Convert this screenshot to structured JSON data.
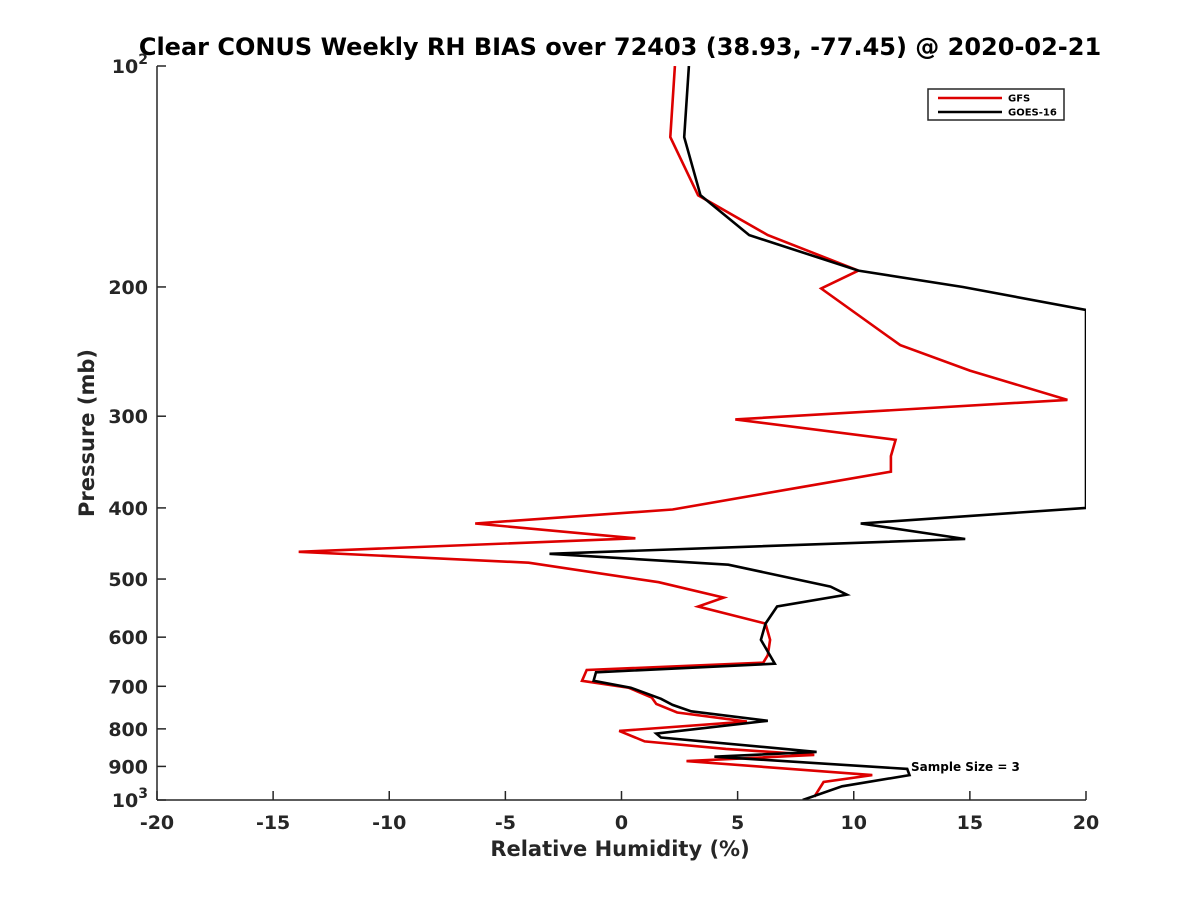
{
  "chart_data": {
    "type": "line",
    "title": "Clear CONUS Weekly RH BIAS over 72403 (38.93, -77.45) @ 2020-02-21",
    "xlabel": "Relative Humidity (%)",
    "ylabel": "Pressure (mb)",
    "xlim": [
      -20,
      20
    ],
    "ylim": [
      100,
      1000
    ],
    "y_scale": "log",
    "y_reversed": true,
    "x_ticks": [
      "-20",
      "-15",
      "-10",
      "-5",
      "0",
      "5",
      "10",
      "15",
      "20"
    ],
    "y_ticks": [
      {
        "value": 100,
        "base": "10",
        "exp": "2"
      },
      {
        "value": 200,
        "label": "200"
      },
      {
        "value": 300,
        "label": "300"
      },
      {
        "value": 400,
        "label": "400"
      },
      {
        "value": 500,
        "label": "500"
      },
      {
        "value": 600,
        "label": "600"
      },
      {
        "value": 700,
        "label": "700"
      },
      {
        "value": 800,
        "label": "800"
      },
      {
        "value": 900,
        "label": "900"
      },
      {
        "value": 1000,
        "base": "10",
        "exp": "3"
      }
    ],
    "grid": false,
    "legend_position": "top-right",
    "annotation": "Sample Size = 3",
    "series": [
      {
        "name": "GFS",
        "color": "#dd0000",
        "points": [
          [
            2.3,
            100
          ],
          [
            2.1,
            125
          ],
          [
            3.3,
            150
          ],
          [
            6.3,
            170
          ],
          [
            10.2,
            190
          ],
          [
            8.6,
            201
          ],
          [
            12.0,
            240
          ],
          [
            15.0,
            260
          ],
          [
            19.2,
            285
          ],
          [
            4.9,
            303
          ],
          [
            11.8,
            323
          ],
          [
            11.6,
            340
          ],
          [
            11.6,
            357
          ],
          [
            7.7,
            375
          ],
          [
            2.2,
            402
          ],
          [
            -6.3,
            420
          ],
          [
            0.6,
            440
          ],
          [
            -13.9,
            459
          ],
          [
            -4.0,
            475
          ],
          [
            1.6,
            505
          ],
          [
            4.4,
            530
          ],
          [
            3.3,
            545
          ],
          [
            6.2,
            575
          ],
          [
            6.4,
            605
          ],
          [
            6.3,
            635
          ],
          [
            6.1,
            650
          ],
          [
            -1.5,
            665
          ],
          [
            -1.7,
            688
          ],
          [
            0.3,
            703
          ],
          [
            1.3,
            725
          ],
          [
            1.5,
            740
          ],
          [
            2.4,
            760
          ],
          [
            5.4,
            782
          ],
          [
            -0.1,
            805
          ],
          [
            1.0,
            832
          ],
          [
            4.5,
            852
          ],
          [
            8.3,
            868
          ],
          [
            2.8,
            885
          ],
          [
            10.8,
            925
          ],
          [
            8.7,
            945
          ],
          [
            8.3,
            990
          ]
        ]
      },
      {
        "name": "GOES-16",
        "color": "#000000",
        "points": [
          [
            2.9,
            100
          ],
          [
            2.7,
            125
          ],
          [
            3.4,
            150
          ],
          [
            5.5,
            170
          ],
          [
            10.2,
            190
          ],
          [
            14.7,
            200
          ],
          [
            20,
            215
          ],
          [
            20,
            400
          ],
          [
            10.3,
            420
          ],
          [
            14.8,
            441
          ],
          [
            -3.1,
            462
          ],
          [
            4.6,
            478
          ],
          [
            9.0,
            512
          ],
          [
            9.7,
            525
          ],
          [
            6.7,
            545
          ],
          [
            6.2,
            575
          ],
          [
            6.0,
            605
          ],
          [
            6.6,
            652
          ],
          [
            -1.1,
            670
          ],
          [
            -1.2,
            688
          ],
          [
            0.4,
            703
          ],
          [
            1.7,
            728
          ],
          [
            2.2,
            742
          ],
          [
            3.0,
            757
          ],
          [
            6.3,
            780
          ],
          [
            1.5,
            812
          ],
          [
            1.7,
            822
          ],
          [
            8.4,
            860
          ],
          [
            4.0,
            873
          ],
          [
            12.3,
            907
          ],
          [
            12.4,
            925
          ],
          [
            9.5,
            958
          ],
          [
            7.8,
            1000
          ]
        ]
      }
    ]
  }
}
